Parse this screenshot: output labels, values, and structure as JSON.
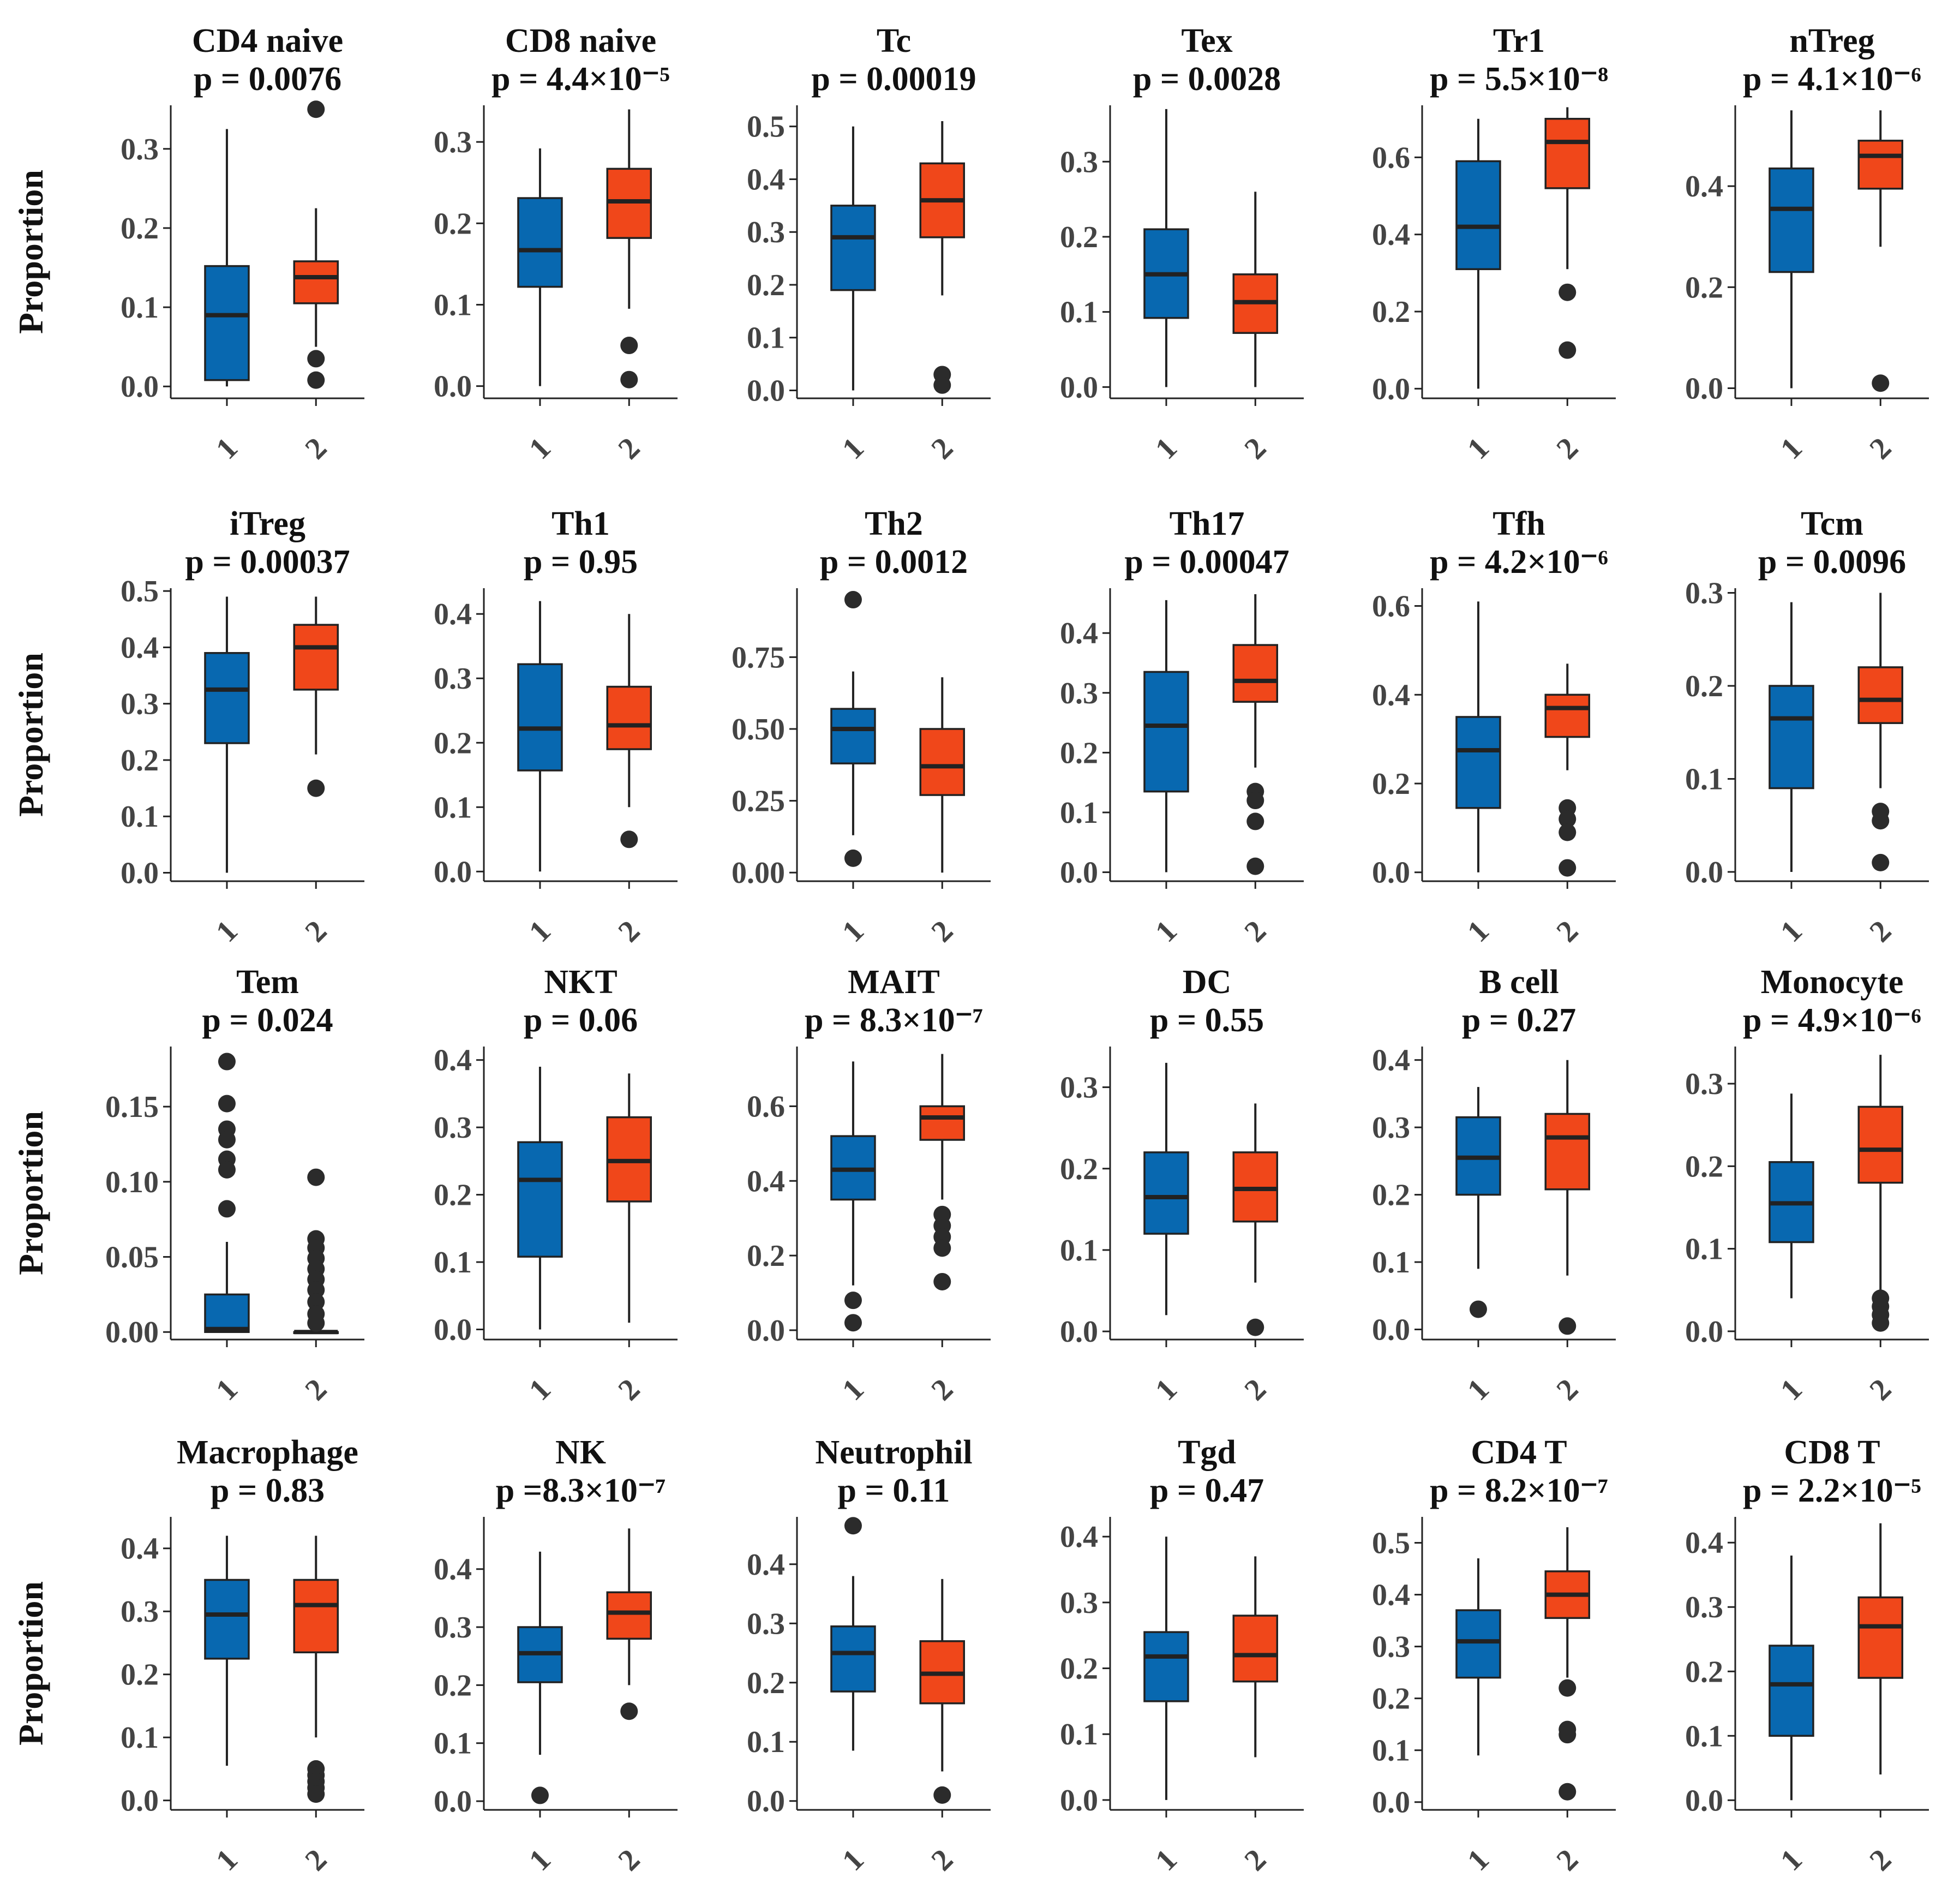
{
  "colors": {
    "group1": "#0868b0",
    "group2": "#f0471a",
    "outlier": "#2b2b2b"
  },
  "chart_data": {
    "type": "boxplot",
    "ylabel": "Proportion",
    "groups": [
      "1",
      "2"
    ],
    "panels": [
      {
        "title": "CD4 naive",
        "p": "p = 0.0076",
        "yticks": [
          0.0,
          0.1,
          0.2,
          0.3
        ],
        "ylim": [
          -0.015,
          0.355
        ],
        "boxes": [
          {
            "wlo": 0.0,
            "q1": 0.008,
            "med": 0.09,
            "q3": 0.152,
            "whi": 0.325,
            "out": []
          },
          {
            "wlo": 0.05,
            "q1": 0.105,
            "med": 0.138,
            "q3": 0.158,
            "whi": 0.225,
            "out": [
              0.35,
              0.035,
              0.008
            ]
          }
        ]
      },
      {
        "title": "CD8 naive",
        "p": "p = 4.4×10⁻⁵",
        "yticks": [
          0.0,
          0.1,
          0.2,
          0.3
        ],
        "ylim": [
          -0.015,
          0.345
        ],
        "boxes": [
          {
            "wlo": 0.0,
            "q1": 0.122,
            "med": 0.167,
            "q3": 0.231,
            "whi": 0.292,
            "out": []
          },
          {
            "wlo": 0.095,
            "q1": 0.182,
            "med": 0.227,
            "q3": 0.267,
            "whi": 0.34,
            "out": [
              0.05,
              0.008
            ]
          }
        ]
      },
      {
        "title": "Tc",
        "p": "p = 0.00019",
        "yticks": [
          0.0,
          0.1,
          0.2,
          0.3,
          0.4,
          0.5
        ],
        "ylim": [
          -0.015,
          0.54
        ],
        "boxes": [
          {
            "wlo": 0.0,
            "q1": 0.19,
            "med": 0.29,
            "q3": 0.35,
            "whi": 0.5,
            "out": []
          },
          {
            "wlo": 0.18,
            "q1": 0.29,
            "med": 0.36,
            "q3": 0.43,
            "whi": 0.51,
            "out": [
              0.03,
              0.01
            ]
          }
        ]
      },
      {
        "title": "Tex",
        "p": "p = 0.0028",
        "yticks": [
          0.0,
          0.1,
          0.2,
          0.3
        ],
        "ylim": [
          -0.015,
          0.375
        ],
        "boxes": [
          {
            "wlo": 0.0,
            "q1": 0.092,
            "med": 0.15,
            "q3": 0.21,
            "whi": 0.37,
            "out": []
          },
          {
            "wlo": 0.0,
            "q1": 0.072,
            "med": 0.113,
            "q3": 0.15,
            "whi": 0.26,
            "out": []
          }
        ]
      },
      {
        "title": "Tr1",
        "p": "p = 5.5×10⁻⁸",
        "yticks": [
          0.0,
          0.2,
          0.4,
          0.6
        ],
        "ylim": [
          -0.025,
          0.735
        ],
        "boxes": [
          {
            "wlo": 0.0,
            "q1": 0.31,
            "med": 0.42,
            "q3": 0.59,
            "whi": 0.7,
            "out": []
          },
          {
            "wlo": 0.31,
            "q1": 0.52,
            "med": 0.64,
            "q3": 0.7,
            "whi": 0.73,
            "out": [
              0.25,
              0.1
            ]
          }
        ]
      },
      {
        "title": "nTreg",
        "p": "p = 4.1×10⁻⁶",
        "yticks": [
          0.0,
          0.2,
          0.4
        ],
        "ylim": [
          -0.02,
          0.56
        ],
        "boxes": [
          {
            "wlo": 0.0,
            "q1": 0.23,
            "med": 0.355,
            "q3": 0.435,
            "whi": 0.55,
            "out": []
          },
          {
            "wlo": 0.28,
            "q1": 0.395,
            "med": 0.46,
            "q3": 0.49,
            "whi": 0.55,
            "out": [
              0.01
            ]
          }
        ]
      },
      {
        "title": "iTreg",
        "p": "p = 0.00037",
        "yticks": [
          0.0,
          0.1,
          0.2,
          0.3,
          0.4,
          0.5
        ],
        "ylim": [
          -0.015,
          0.505
        ],
        "boxes": [
          {
            "wlo": 0.0,
            "q1": 0.23,
            "med": 0.325,
            "q3": 0.39,
            "whi": 0.49,
            "out": []
          },
          {
            "wlo": 0.21,
            "q1": 0.325,
            "med": 0.4,
            "q3": 0.44,
            "whi": 0.49,
            "out": [
              0.15
            ]
          }
        ]
      },
      {
        "title": "Th1",
        "p": "p = 0.95",
        "yticks": [
          0.0,
          0.1,
          0.2,
          0.3,
          0.4
        ],
        "ylim": [
          -0.015,
          0.44
        ],
        "boxes": [
          {
            "wlo": 0.0,
            "q1": 0.157,
            "med": 0.222,
            "q3": 0.322,
            "whi": 0.42,
            "out": []
          },
          {
            "wlo": 0.1,
            "q1": 0.19,
            "med": 0.227,
            "q3": 0.287,
            "whi": 0.4,
            "out": [
              0.05
            ]
          }
        ]
      },
      {
        "title": "Th2",
        "p": "p = 0.0012",
        "yticks": [
          0.0,
          0.25,
          0.5,
          0.75
        ],
        "ylim": [
          -0.03,
          0.99
        ],
        "boxes": [
          {
            "wlo": 0.13,
            "q1": 0.38,
            "med": 0.5,
            "q3": 0.57,
            "whi": 0.7,
            "out": [
              0.95,
              0.05
            ]
          },
          {
            "wlo": 0.0,
            "q1": 0.27,
            "med": 0.37,
            "q3": 0.5,
            "whi": 0.68,
            "out": []
          }
        ]
      },
      {
        "title": "Th17",
        "p": "p = 0.00047",
        "yticks": [
          0.0,
          0.1,
          0.2,
          0.3,
          0.4
        ],
        "ylim": [
          -0.015,
          0.475
        ],
        "boxes": [
          {
            "wlo": 0.0,
            "q1": 0.135,
            "med": 0.245,
            "q3": 0.335,
            "whi": 0.455,
            "out": []
          },
          {
            "wlo": 0.175,
            "q1": 0.285,
            "med": 0.32,
            "q3": 0.38,
            "whi": 0.465,
            "out": [
              0.135,
              0.12,
              0.085,
              0.01
            ]
          }
        ]
      },
      {
        "title": "Tfh",
        "p": "p = 4.2×10⁻⁶",
        "yticks": [
          0.0,
          0.2,
          0.4,
          0.6
        ],
        "ylim": [
          -0.02,
          0.64
        ],
        "boxes": [
          {
            "wlo": 0.0,
            "q1": 0.145,
            "med": 0.275,
            "q3": 0.35,
            "whi": 0.61,
            "out": []
          },
          {
            "wlo": 0.23,
            "q1": 0.305,
            "med": 0.37,
            "q3": 0.4,
            "whi": 0.47,
            "out": [
              0.145,
              0.12,
              0.09,
              0.01
            ]
          }
        ]
      },
      {
        "title": "Tcm",
        "p": "p = 0.0096",
        "yticks": [
          0.0,
          0.1,
          0.2,
          0.3
        ],
        "ylim": [
          -0.01,
          0.305
        ],
        "boxes": [
          {
            "wlo": 0.0,
            "q1": 0.09,
            "med": 0.165,
            "q3": 0.2,
            "whi": 0.29,
            "out": []
          },
          {
            "wlo": 0.09,
            "q1": 0.16,
            "med": 0.185,
            "q3": 0.22,
            "whi": 0.3,
            "out": [
              0.065,
              0.055,
              0.01
            ]
          }
        ]
      },
      {
        "title": "Tem",
        "p": "p = 0.024",
        "yticks": [
          0.0,
          0.05,
          0.1,
          0.15
        ],
        "ylim": [
          -0.005,
          0.19
        ],
        "boxes": [
          {
            "wlo": 0.0,
            "q1": 0.0,
            "med": 0.002,
            "q3": 0.025,
            "whi": 0.06,
            "out": [
              0.18,
              0.152,
              0.135,
              0.128,
              0.115,
              0.108,
              0.082
            ]
          },
          {
            "wlo": 0.0,
            "q1": 0.0,
            "med": 0.0,
            "q3": 0.0,
            "whi": 0.0,
            "out": [
              0.103,
              0.062,
              0.056,
              0.049,
              0.042,
              0.035,
              0.028,
              0.02,
              0.012,
              0.006
            ]
          }
        ]
      },
      {
        "title": "NKT",
        "p": "p = 0.06",
        "yticks": [
          0.0,
          0.1,
          0.2,
          0.3,
          0.4
        ],
        "ylim": [
          -0.015,
          0.42
        ],
        "boxes": [
          {
            "wlo": 0.0,
            "q1": 0.108,
            "med": 0.222,
            "q3": 0.278,
            "whi": 0.39,
            "out": []
          },
          {
            "wlo": 0.01,
            "q1": 0.19,
            "med": 0.25,
            "q3": 0.315,
            "whi": 0.38,
            "out": []
          }
        ]
      },
      {
        "title": "MAIT",
        "p": "p = 8.3×10⁻⁷",
        "yticks": [
          0.0,
          0.2,
          0.4,
          0.6
        ],
        "ylim": [
          -0.025,
          0.76
        ],
        "boxes": [
          {
            "wlo": 0.12,
            "q1": 0.35,
            "med": 0.43,
            "q3": 0.52,
            "whi": 0.72,
            "out": [
              0.08,
              0.02
            ]
          },
          {
            "wlo": 0.35,
            "q1": 0.51,
            "med": 0.57,
            "q3": 0.6,
            "whi": 0.74,
            "out": [
              0.31,
              0.28,
              0.25,
              0.22,
              0.13
            ]
          }
        ]
      },
      {
        "title": "DC",
        "p": "p = 0.55",
        "yticks": [
          0.0,
          0.1,
          0.2,
          0.3
        ],
        "ylim": [
          -0.01,
          0.35
        ],
        "boxes": [
          {
            "wlo": 0.02,
            "q1": 0.12,
            "med": 0.165,
            "q3": 0.22,
            "whi": 0.33,
            "out": []
          },
          {
            "wlo": 0.06,
            "q1": 0.135,
            "med": 0.175,
            "q3": 0.22,
            "whi": 0.28,
            "out": [
              0.005
            ]
          }
        ]
      },
      {
        "title": "B cell",
        "p": "p = 0.27",
        "yticks": [
          0.0,
          0.1,
          0.2,
          0.3,
          0.4
        ],
        "ylim": [
          -0.015,
          0.42
        ],
        "boxes": [
          {
            "wlo": 0.09,
            "q1": 0.2,
            "med": 0.255,
            "q3": 0.315,
            "whi": 0.36,
            "out": [
              0.03
            ]
          },
          {
            "wlo": 0.08,
            "q1": 0.208,
            "med": 0.285,
            "q3": 0.32,
            "whi": 0.4,
            "out": [
              0.005
            ]
          }
        ]
      },
      {
        "title": "Monocyte",
        "p": "p = 4.9×10⁻⁶",
        "yticks": [
          0.0,
          0.1,
          0.2,
          0.3
        ],
        "ylim": [
          -0.01,
          0.345
        ],
        "boxes": [
          {
            "wlo": 0.04,
            "q1": 0.108,
            "med": 0.155,
            "q3": 0.205,
            "whi": 0.288,
            "out": []
          },
          {
            "wlo": 0.05,
            "q1": 0.18,
            "med": 0.22,
            "q3": 0.272,
            "whi": 0.335,
            "out": [
              0.04,
              0.03,
              0.02,
              0.01
            ]
          }
        ]
      },
      {
        "title": "Macrophage",
        "p": "p = 0.83",
        "yticks": [
          0.0,
          0.1,
          0.2,
          0.3,
          0.4
        ],
        "ylim": [
          -0.015,
          0.45
        ],
        "boxes": [
          {
            "wlo": 0.055,
            "q1": 0.225,
            "med": 0.295,
            "q3": 0.35,
            "whi": 0.42,
            "out": []
          },
          {
            "wlo": 0.1,
            "q1": 0.235,
            "med": 0.31,
            "q3": 0.35,
            "whi": 0.42,
            "out": [
              0.05,
              0.04,
              0.03,
              0.02,
              0.01
            ]
          }
        ]
      },
      {
        "title": "NK",
        "p": "p =8.3×10⁻⁷",
        "yticks": [
          0.0,
          0.1,
          0.2,
          0.3,
          0.4
        ],
        "ylim": [
          -0.015,
          0.49
        ],
        "boxes": [
          {
            "wlo": 0.08,
            "q1": 0.205,
            "med": 0.255,
            "q3": 0.3,
            "whi": 0.43,
            "out": [
              0.01
            ]
          },
          {
            "wlo": 0.2,
            "q1": 0.28,
            "med": 0.325,
            "q3": 0.36,
            "whi": 0.47,
            "out": [
              0.155
            ]
          }
        ]
      },
      {
        "title": "Neutrophil",
        "p": "p = 0.11",
        "yticks": [
          0.0,
          0.1,
          0.2,
          0.3,
          0.4
        ],
        "ylim": [
          -0.015,
          0.48
        ],
        "boxes": [
          {
            "wlo": 0.085,
            "q1": 0.185,
            "med": 0.25,
            "q3": 0.295,
            "whi": 0.38,
            "out": [
              0.465
            ]
          },
          {
            "wlo": 0.05,
            "q1": 0.165,
            "med": 0.215,
            "q3": 0.27,
            "whi": 0.375,
            "out": [
              0.01
            ]
          }
        ]
      },
      {
        "title": "Tgd",
        "p": "p = 0.47",
        "yticks": [
          0.0,
          0.1,
          0.2,
          0.3,
          0.4
        ],
        "ylim": [
          -0.015,
          0.43
        ],
        "boxes": [
          {
            "wlo": 0.0,
            "q1": 0.15,
            "med": 0.218,
            "q3": 0.255,
            "whi": 0.4,
            "out": []
          },
          {
            "wlo": 0.065,
            "q1": 0.18,
            "med": 0.22,
            "q3": 0.28,
            "whi": 0.37,
            "out": []
          }
        ]
      },
      {
        "title": "CD4 T",
        "p": "p = 8.2×10⁻⁷",
        "yticks": [
          0.0,
          0.1,
          0.2,
          0.3,
          0.4,
          0.5
        ],
        "ylim": [
          -0.015,
          0.55
        ],
        "boxes": [
          {
            "wlo": 0.09,
            "q1": 0.24,
            "med": 0.31,
            "q3": 0.37,
            "whi": 0.47,
            "out": []
          },
          {
            "wlo": 0.24,
            "q1": 0.355,
            "med": 0.4,
            "q3": 0.445,
            "whi": 0.53,
            "out": [
              0.22,
              0.14,
              0.13,
              0.02
            ]
          }
        ]
      },
      {
        "title": "CD8 T",
        "p": "p = 2.2×10⁻⁵",
        "yticks": [
          0.0,
          0.1,
          0.2,
          0.3,
          0.4
        ],
        "ylim": [
          -0.015,
          0.44
        ],
        "boxes": [
          {
            "wlo": 0.0,
            "q1": 0.1,
            "med": 0.18,
            "q3": 0.24,
            "whi": 0.38,
            "out": []
          },
          {
            "wlo": 0.04,
            "q1": 0.19,
            "med": 0.27,
            "q3": 0.315,
            "whi": 0.43,
            "out": []
          }
        ]
      }
    ]
  }
}
